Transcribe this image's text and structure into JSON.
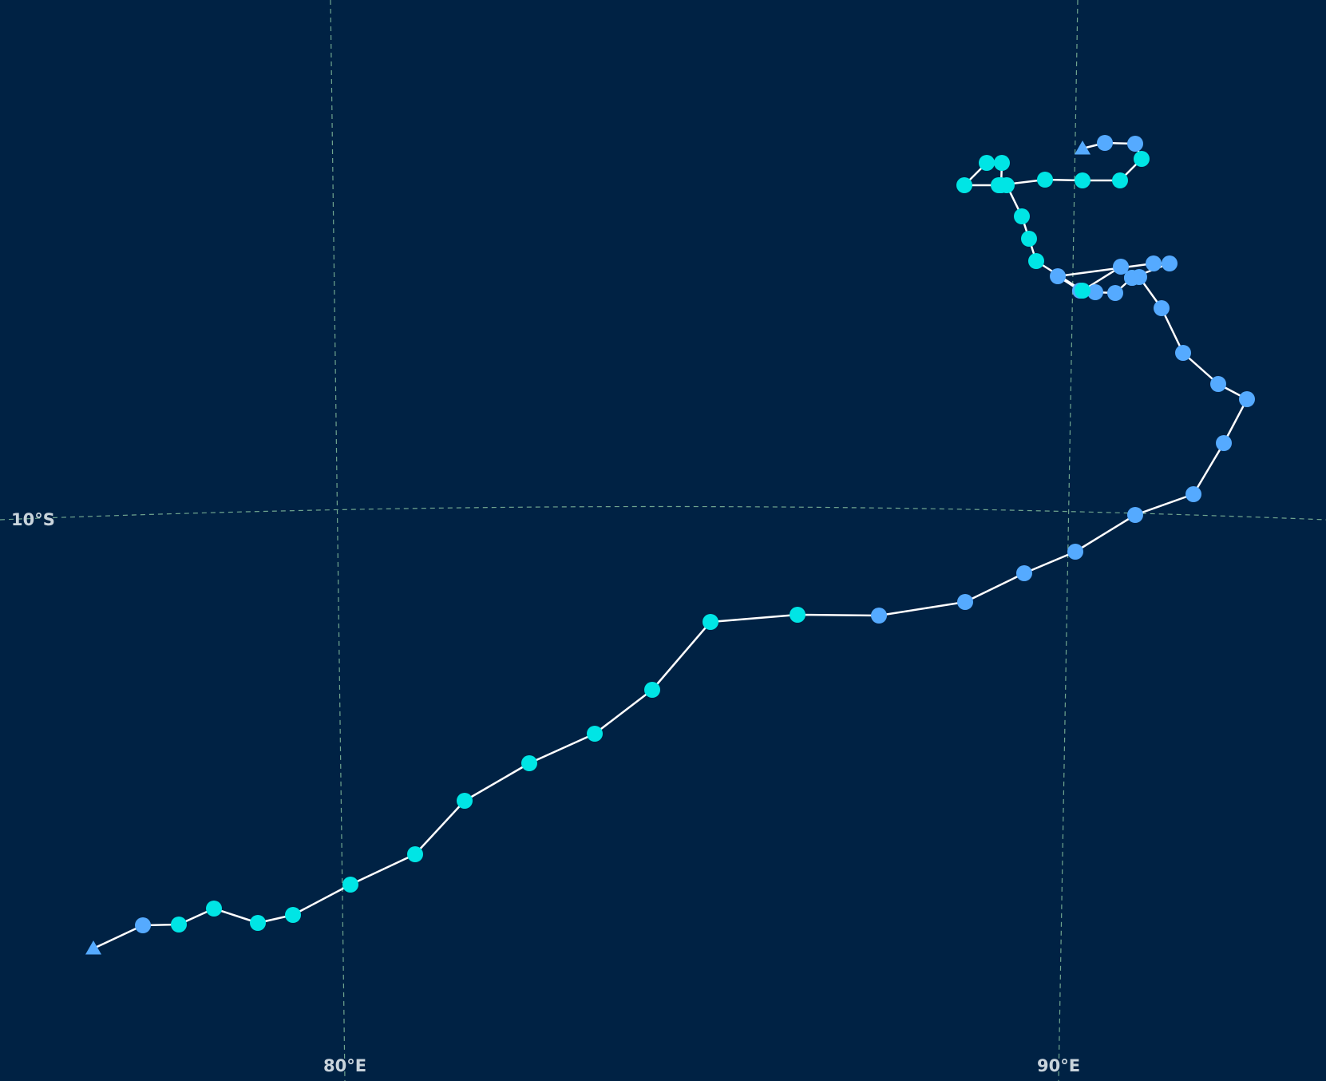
{
  "map": {
    "graticule_labels": {
      "lat_10s": "10°S",
      "lon_80e": "80°E",
      "lon_90e": "90°E"
    },
    "colors": {
      "background": "#002244",
      "graticule": "#6fa58f",
      "track_line": "#ffffff",
      "point_cyan": "#00e5e5",
      "point_blue": "#55aaff"
    },
    "markers": {
      "start_shape": "triangle",
      "end_shape": "triangle",
      "point_shape": "circle"
    },
    "track_point_categories": [
      "blue",
      "blue",
      "cyan",
      "cyan",
      "cyan",
      "cyan",
      "cyan",
      "cyan",
      "cyan",
      "cyan",
      "cyan",
      "cyan",
      "cyan",
      "cyan",
      "blue",
      "blue",
      "blue",
      "blue",
      "blue",
      "blue",
      "blue",
      "blue",
      "blue",
      "blue",
      "blue",
      "blue",
      "blue",
      "blue",
      "blue",
      "blue",
      "blue",
      "blue",
      "blue",
      "blue",
      "blue",
      "cyan",
      "cyan",
      "cyan",
      "cyan",
      "cyan",
      "cyan",
      "cyan",
      "cyan",
      "cyan",
      "cyan",
      "cyan",
      "cyan",
      "cyan",
      "cyan",
      "blue",
      "blue"
    ]
  }
}
